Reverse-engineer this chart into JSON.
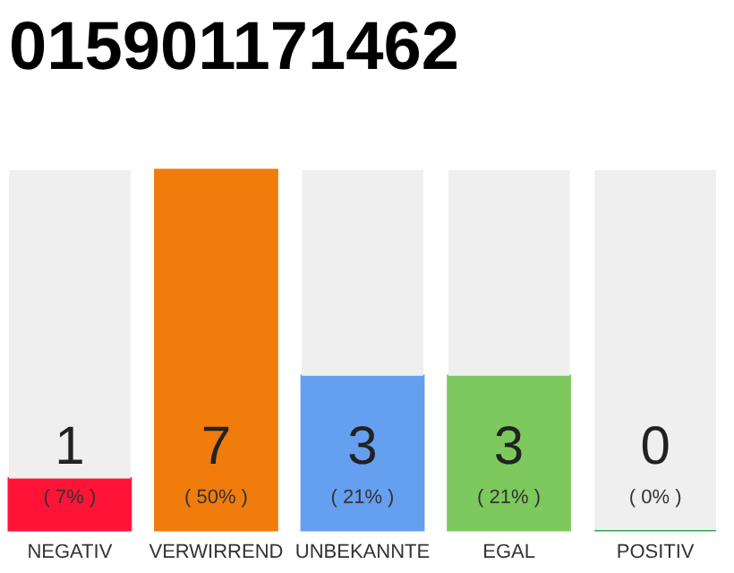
{
  "chart_data": {
    "type": "bar",
    "title": "015901171462",
    "categories": [
      "NEGATIV",
      "VERWIRREND",
      "UNBEKANNTE",
      "EGAL",
      "POSITIV"
    ],
    "stacked": true,
    "series": [
      {
        "colors": [
          "#ff1438",
          "#f07c0c",
          "#659ff0",
          "#7dc95e",
          "#2aa84a"
        ],
        "values": [
          1,
          7,
          3,
          3,
          0
        ],
        "value_labels": [
          "1",
          "7",
          "3",
          "3",
          "0"
        ]
      },
      {
        "color": "#efefef",
        "values": [
          6,
          0,
          4,
          4,
          7
        ]
      }
    ],
    "annotations": [
      "( 7% )",
      "( 50% )",
      "( 21% )",
      "( 21% )",
      "( 0% )"
    ],
    "tick_labels": "x"
  }
}
